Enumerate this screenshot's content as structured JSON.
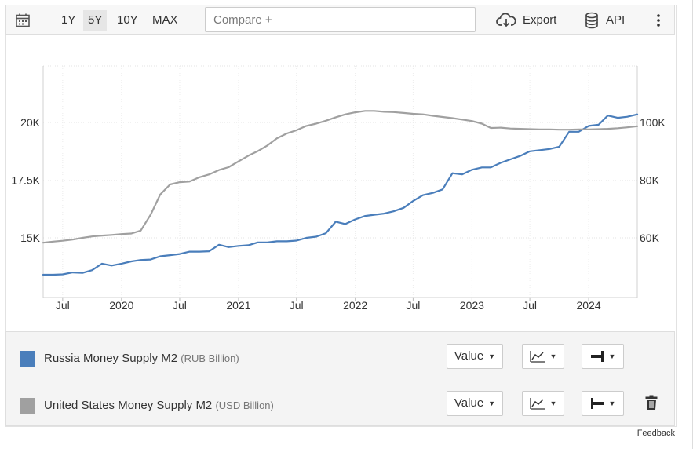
{
  "toolbar": {
    "ranges": [
      "1Y",
      "5Y",
      "10Y",
      "MAX"
    ],
    "active_range": "5Y",
    "compare_placeholder": "Compare +",
    "export_label": "Export",
    "api_label": "API",
    "icons": [
      "calendar-icon",
      "cloud-download-icon",
      "database-icon",
      "kebab-menu-icon"
    ]
  },
  "chart_data": {
    "type": "line",
    "x_tick_labels": [
      "Jul",
      "2020",
      "Jul",
      "2021",
      "Jul",
      "2022",
      "Jul",
      "2023",
      "Jul",
      "2024"
    ],
    "x_tick_dates": [
      "2019-07-01",
      "2020-01-01",
      "2020-07-01",
      "2021-01-01",
      "2021-07-01",
      "2022-01-01",
      "2022-07-01",
      "2023-01-01",
      "2023-07-01",
      "2024-01-01"
    ],
    "y_left": {
      "ticks": [
        15000,
        17500,
        20000
      ],
      "tick_labels": [
        "15K",
        "17.5K",
        "20K"
      ],
      "unit": "RUB Billion"
    },
    "y_right": {
      "ticks": [
        60000,
        80000,
        100000
      ],
      "tick_labels": [
        "60K",
        "80K",
        "100K"
      ],
      "unit": "USD Billion"
    },
    "grid": true,
    "series": [
      {
        "name": "Russia Money Supply M2",
        "axis": "left",
        "color": "#4a7ebb",
        "dates": [
          "2019-05-01",
          "2019-06-01",
          "2019-07-01",
          "2019-08-01",
          "2019-09-01",
          "2019-10-01",
          "2019-11-01",
          "2019-12-01",
          "2020-01-01",
          "2020-02-01",
          "2020-03-01",
          "2020-04-01",
          "2020-05-01",
          "2020-06-01",
          "2020-07-01",
          "2020-08-01",
          "2020-09-01",
          "2020-10-01",
          "2020-11-01",
          "2020-12-01",
          "2021-01-01",
          "2021-02-01",
          "2021-03-01",
          "2021-04-01",
          "2021-05-01",
          "2021-06-01",
          "2021-07-01",
          "2021-08-01",
          "2021-09-01",
          "2021-10-01",
          "2021-11-01",
          "2021-12-01",
          "2022-01-01",
          "2022-02-01",
          "2022-03-01",
          "2022-04-01",
          "2022-05-01",
          "2022-06-01",
          "2022-07-01",
          "2022-08-01",
          "2022-09-01",
          "2022-10-01",
          "2022-11-01",
          "2022-12-01",
          "2023-01-01",
          "2023-02-01",
          "2023-03-01",
          "2023-04-01",
          "2023-05-01",
          "2023-06-01",
          "2023-07-01",
          "2023-08-01",
          "2023-09-01",
          "2023-10-01",
          "2023-11-01",
          "2023-12-01",
          "2024-01-01",
          "2024-02-01",
          "2024-03-01",
          "2024-04-01",
          "2024-05-01",
          "2024-06-01"
        ],
        "values": [
          13400,
          13400,
          13420,
          13500,
          13480,
          13600,
          13880,
          13800,
          13880,
          13980,
          14040,
          14060,
          14200,
          14250,
          14300,
          14400,
          14400,
          14420,
          14700,
          14600,
          14650,
          14680,
          14800,
          14800,
          14850,
          14850,
          14880,
          15000,
          15050,
          15200,
          15700,
          15600,
          15800,
          15950,
          16000,
          16050,
          16150,
          16300,
          16600,
          16850,
          16950,
          17100,
          17800,
          17750,
          17950,
          18050,
          18050,
          18250,
          18400,
          18550,
          18750,
          18800,
          18850,
          18950,
          19600,
          19600,
          19850,
          19900,
          20300,
          20200,
          20250,
          20350
        ]
      },
      {
        "name": "United States Money Supply M2",
        "axis": "right",
        "color": "#a0a0a0",
        "dates": [
          "2019-05-01",
          "2019-06-01",
          "2019-07-01",
          "2019-08-01",
          "2019-09-01",
          "2019-10-01",
          "2019-11-01",
          "2019-12-01",
          "2020-01-01",
          "2020-02-01",
          "2020-03-01",
          "2020-04-01",
          "2020-05-01",
          "2020-06-01",
          "2020-07-01",
          "2020-08-01",
          "2020-09-01",
          "2020-10-01",
          "2020-11-01",
          "2020-12-01",
          "2021-01-01",
          "2021-02-01",
          "2021-03-01",
          "2021-04-01",
          "2021-05-01",
          "2021-06-01",
          "2021-07-01",
          "2021-08-01",
          "2021-09-01",
          "2021-10-01",
          "2021-11-01",
          "2021-12-01",
          "2022-01-01",
          "2022-02-01",
          "2022-03-01",
          "2022-04-01",
          "2022-05-01",
          "2022-06-01",
          "2022-07-01",
          "2022-08-01",
          "2022-09-01",
          "2022-10-01",
          "2022-11-01",
          "2022-12-01",
          "2023-01-01",
          "2023-02-01",
          "2023-03-01",
          "2023-04-01",
          "2023-05-01",
          "2023-06-01",
          "2023-07-01",
          "2023-08-01",
          "2023-09-01",
          "2023-10-01",
          "2023-11-01",
          "2023-12-01",
          "2024-01-01",
          "2024-02-01",
          "2024-03-01",
          "2024-04-01",
          "2024-05-01",
          "2024-06-01"
        ],
        "values": [
          58300,
          58700,
          59000,
          59400,
          60000,
          60500,
          60800,
          61000,
          61300,
          61500,
          62500,
          68000,
          75000,
          78500,
          79300,
          79500,
          81000,
          82000,
          83500,
          84500,
          86500,
          88500,
          90000,
          92000,
          94500,
          96200,
          97300,
          98800,
          99600,
          100600,
          101800,
          102800,
          103500,
          104000,
          104000,
          103700,
          103600,
          103300,
          103000,
          102800,
          102300,
          101900,
          101500,
          101000,
          100500,
          99600,
          98100,
          98200,
          97900,
          97800,
          97700,
          97600,
          97600,
          97500,
          97500,
          97600,
          97600,
          97700,
          97800,
          98000,
          98300,
          98700
        ]
      }
    ]
  },
  "legend": {
    "rows": [
      {
        "name": "Russia Money Supply M2",
        "unit": "(RUB Billion)",
        "color": "#4a7ebb",
        "value_label": "Value",
        "chart_icon": "line-chart-icon",
        "axis_icon": "axis-right-icon"
      },
      {
        "name": "United States Money Supply M2",
        "unit": "(USD Billion)",
        "color": "#a0a0a0",
        "value_label": "Value",
        "chart_icon": "line-chart-icon",
        "axis_icon": "axis-left-icon",
        "delete_icon": "trash-icon"
      }
    ]
  },
  "feedback_label": "Feedback"
}
